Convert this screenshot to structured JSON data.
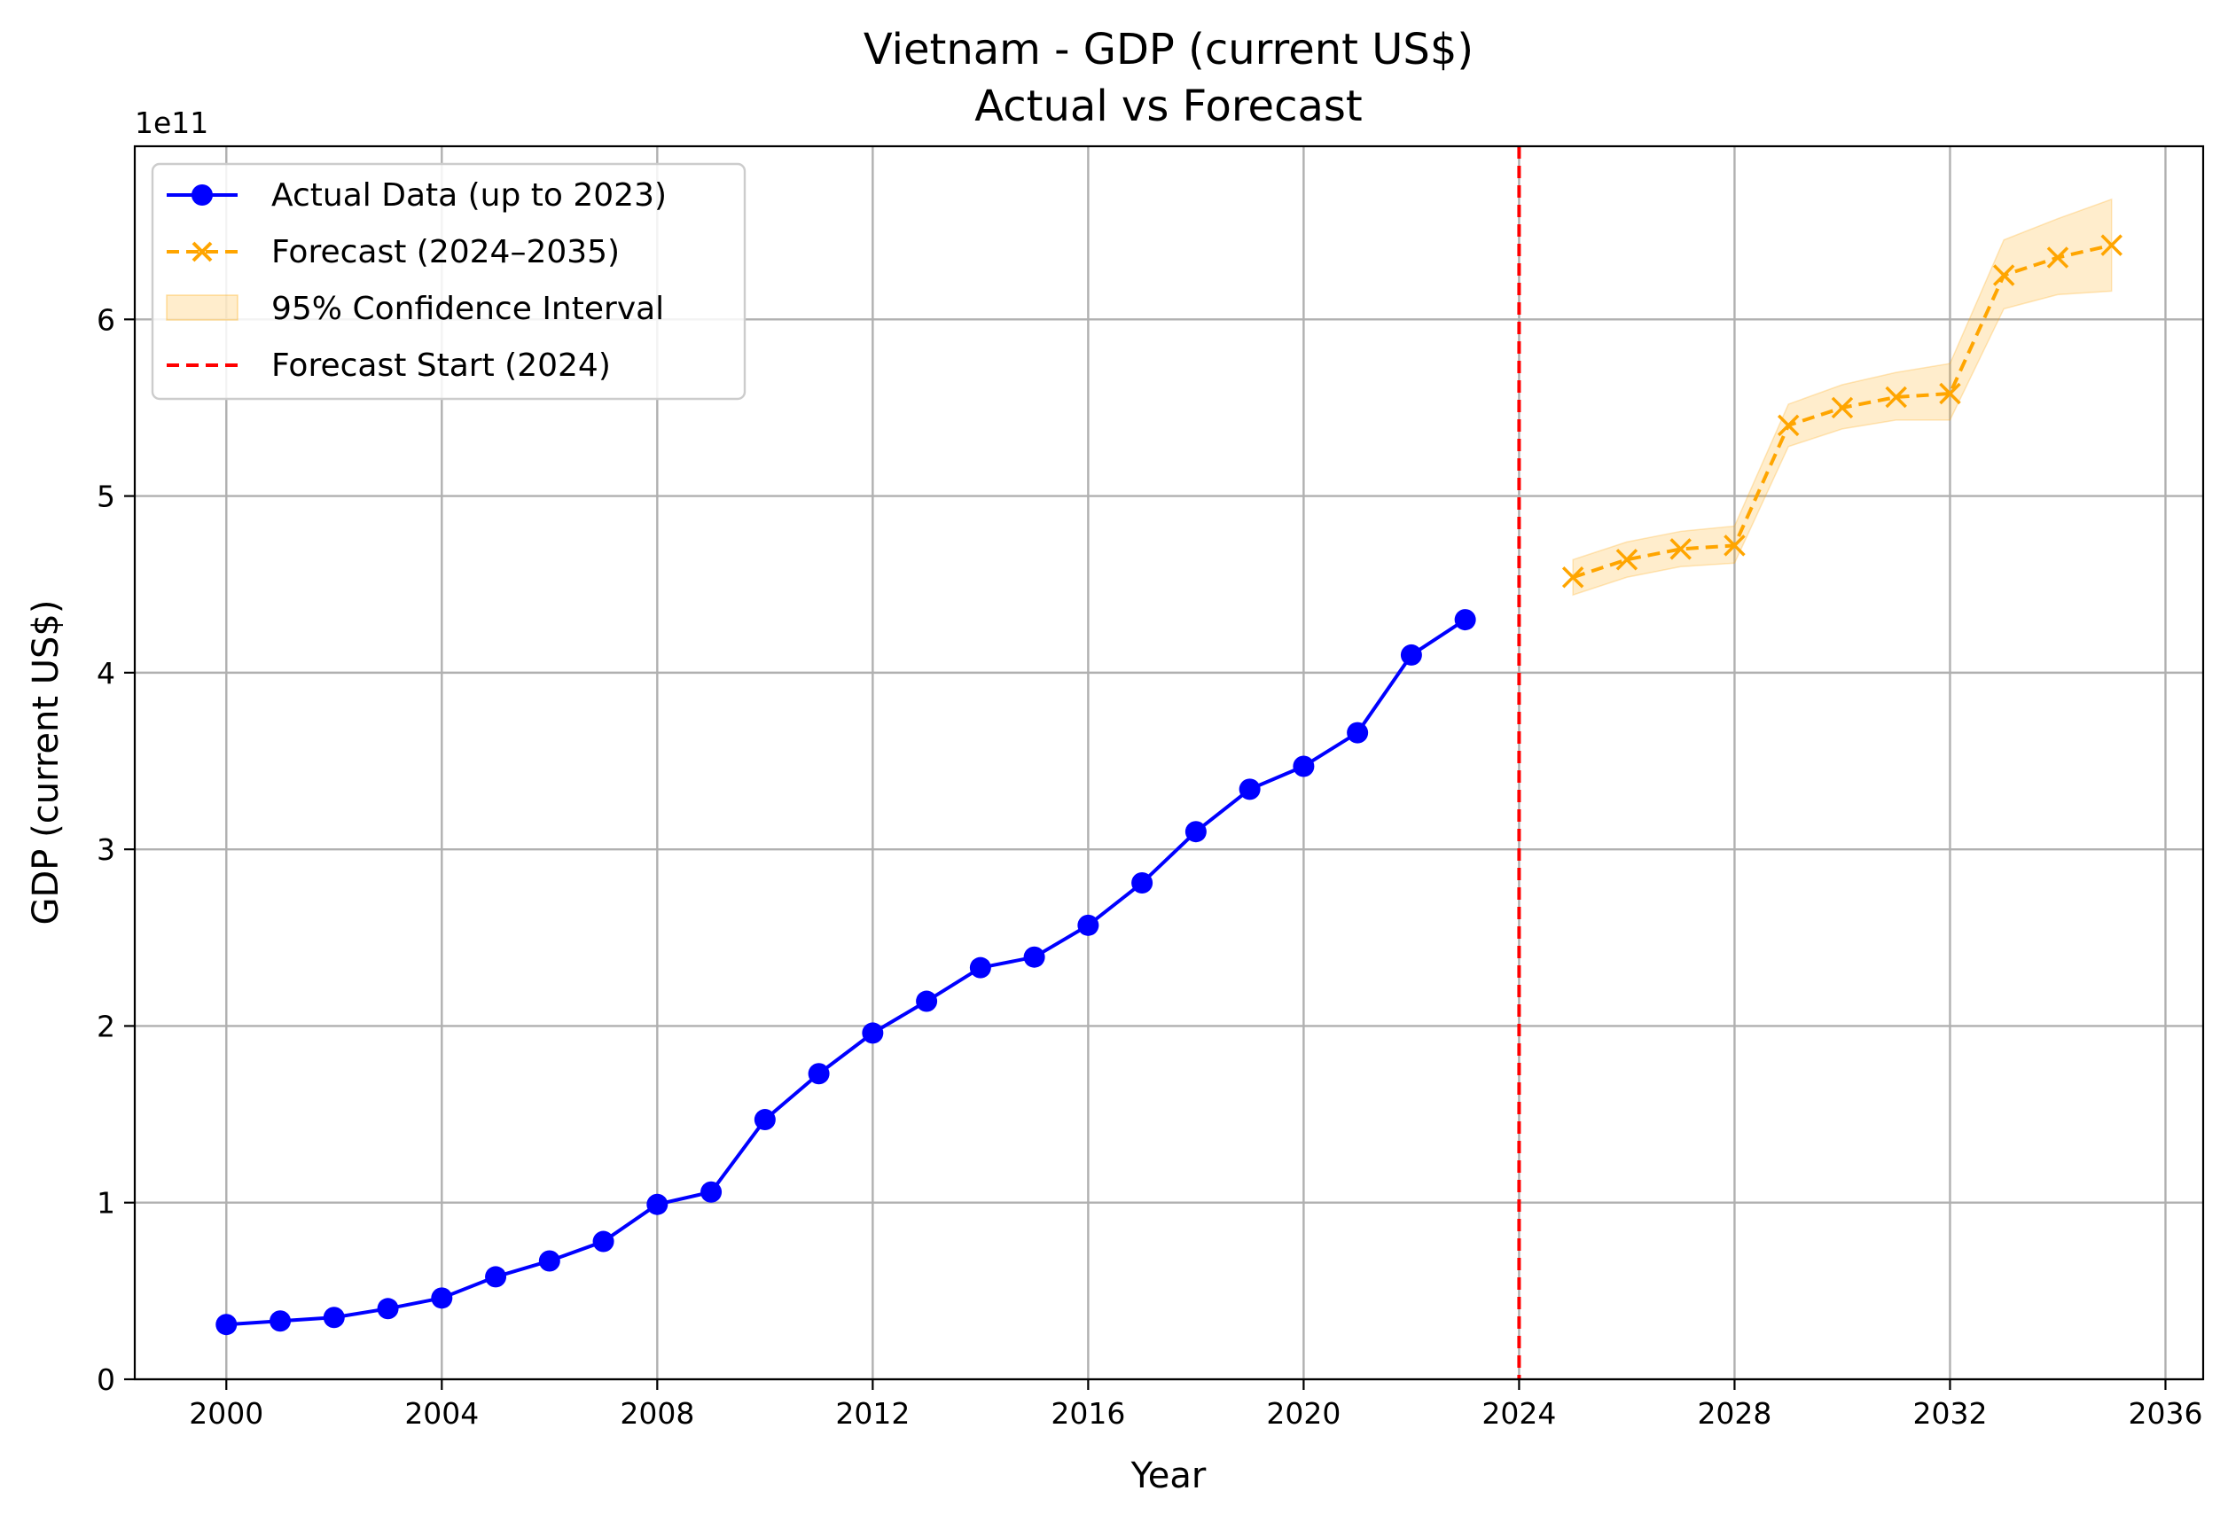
{
  "chart_data": {
    "type": "line",
    "title": "Vietnam - GDP (current US$)",
    "subtitle": "Actual vs Forecast",
    "xlabel": "Year",
    "ylabel": "GDP (current US$)",
    "y_offset_label": "1e11",
    "xlim": [
      1998.3,
      2036.7
    ],
    "ylim": [
      0,
      6.98
    ],
    "y_unit_multiplier": 100000000000.0,
    "x_ticks": [
      2000,
      2004,
      2008,
      2012,
      2016,
      2020,
      2024,
      2028,
      2032,
      2036
    ],
    "x_tick_labels": [
      "2000",
      "2004",
      "2008",
      "2012",
      "2016",
      "2020",
      "2024",
      "2028",
      "2032",
      "2036"
    ],
    "y_ticks": [
      0,
      1,
      2,
      3,
      4,
      5,
      6
    ],
    "y_tick_labels": [
      "0",
      "1",
      "2",
      "3",
      "4",
      "5",
      "6"
    ],
    "grid": true,
    "legend_position": "top-left",
    "series": [
      {
        "name": "Actual Data (up to 2023)",
        "color": "#0000ff",
        "style": "solid",
        "marker": "circle",
        "x": [
          2000,
          2001,
          2002,
          2003,
          2004,
          2005,
          2006,
          2007,
          2008,
          2009,
          2010,
          2011,
          2012,
          2013,
          2014,
          2015,
          2016,
          2017,
          2018,
          2019,
          2020,
          2021,
          2022,
          2023
        ],
        "y": [
          0.31,
          0.33,
          0.35,
          0.4,
          0.46,
          0.58,
          0.67,
          0.78,
          0.99,
          1.06,
          1.47,
          1.73,
          1.96,
          2.14,
          2.33,
          2.39,
          2.57,
          2.81,
          3.1,
          3.34,
          3.47,
          3.66,
          4.1,
          4.3
        ]
      },
      {
        "name": "Forecast (2024–2035)",
        "color": "#ffa500",
        "style": "dashed",
        "marker": "x",
        "x": [
          2025,
          2026,
          2027,
          2028,
          2029,
          2030,
          2031,
          2032,
          2033,
          2034,
          2035
        ],
        "y": [
          4.54,
          4.64,
          4.7,
          4.72,
          5.4,
          5.5,
          5.56,
          5.58,
          6.25,
          6.35,
          6.42
        ]
      }
    ],
    "confidence_interval": {
      "name": "95% Confidence Interval",
      "color": "#ffa500",
      "x": [
        2025,
        2026,
        2027,
        2028,
        2029,
        2030,
        2031,
        2032,
        2033,
        2034,
        2035
      ],
      "lower": [
        4.44,
        4.54,
        4.6,
        4.62,
        5.28,
        5.38,
        5.43,
        5.43,
        6.06,
        6.14,
        6.16
      ],
      "upper": [
        4.64,
        4.74,
        4.8,
        4.83,
        5.52,
        5.63,
        5.7,
        5.75,
        6.45,
        6.57,
        6.68
      ]
    },
    "vertical_line": {
      "name": "Forecast Start (2024)",
      "x": 2024,
      "color": "#ff0000",
      "style": "dashed"
    }
  }
}
